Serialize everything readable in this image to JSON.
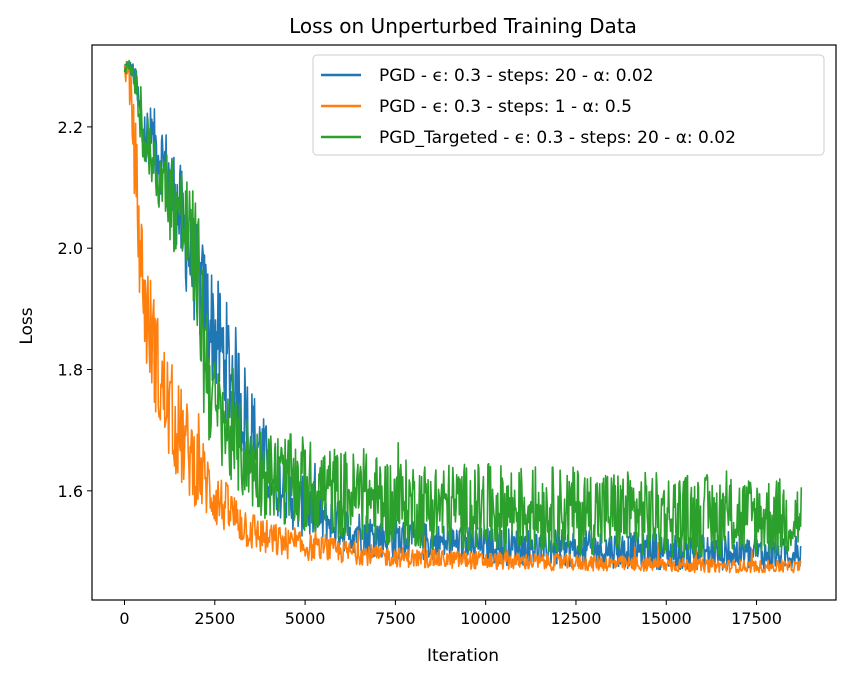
{
  "chart_data": {
    "type": "line",
    "title": "Loss on Unperturbed Training Data",
    "xlabel": "Iteration",
    "ylabel": "Loss",
    "xlim": [
      -900,
      19700
    ],
    "ylim": [
      1.42,
      2.335
    ],
    "xticks": [
      0,
      2500,
      5000,
      7500,
      10000,
      12500,
      15000,
      17500
    ],
    "yticks": [
      1.6,
      1.8,
      2.0,
      2.2
    ],
    "yticks_labels": [
      "1.6",
      "1.8",
      "2.0",
      "2.2"
    ],
    "grid": false,
    "legend_position": "top-right",
    "series": [
      {
        "name": "PGD - ϵ: 0.3 - steps: 20 - α: 0.02",
        "color": "#1f77b4",
        "noise": 0.045,
        "x": [
          0,
          200,
          300,
          500,
          1000,
          1500,
          2000,
          2500,
          3000,
          3500,
          4000,
          4500,
          5000,
          6000,
          7000,
          8000,
          10000,
          12500,
          15000,
          17500,
          18750
        ],
        "y_low": [
          2.29,
          2.28,
          2.25,
          2.12,
          2.09,
          1.97,
          1.86,
          1.76,
          1.68,
          1.62,
          1.57,
          1.54,
          1.52,
          1.5,
          1.49,
          1.485,
          1.478,
          1.474,
          1.47,
          1.468,
          1.468
        ],
        "y_high": [
          2.31,
          2.31,
          2.3,
          2.25,
          2.22,
          2.15,
          2.04,
          1.96,
          1.89,
          1.78,
          1.7,
          1.65,
          1.62,
          1.58,
          1.56,
          1.55,
          1.54,
          1.535,
          1.53,
          1.525,
          1.52
        ]
      },
      {
        "name": "PGD - ϵ: 0.3 - steps: 1 - α: 0.5",
        "color": "#ff7f0e",
        "noise": 0.035,
        "x": [
          0,
          100,
          200,
          300,
          400,
          600,
          800,
          1000,
          1500,
          2000,
          2500,
          3000,
          3500,
          4000,
          5000,
          6000,
          7000,
          8000,
          10000,
          12500,
          15000,
          17500,
          18750
        ],
        "y_low": [
          2.28,
          2.26,
          2.18,
          2.05,
          1.92,
          1.8,
          1.75,
          1.68,
          1.61,
          1.57,
          1.54,
          1.52,
          1.5,
          1.49,
          1.485,
          1.48,
          1.476,
          1.473,
          1.47,
          1.468,
          1.466,
          1.465,
          1.465
        ],
        "y_high": [
          2.31,
          2.31,
          2.28,
          2.22,
          2.12,
          1.98,
          1.94,
          1.86,
          1.78,
          1.71,
          1.64,
          1.6,
          1.57,
          1.55,
          1.53,
          1.52,
          1.51,
          1.505,
          1.5,
          1.495,
          1.49,
          1.485,
          1.485
        ]
      },
      {
        "name": "PGD_Targeted - ϵ: 0.3 - steps: 20 - α: 0.02",
        "color": "#2ca02c",
        "noise": 0.06,
        "x": [
          0,
          200,
          300,
          500,
          1000,
          1500,
          2000,
          2200,
          2500,
          3000,
          3500,
          4000,
          5000,
          6000,
          7000,
          8000,
          10000,
          12500,
          15000,
          17500,
          18750
        ],
        "y_low": [
          2.29,
          2.28,
          2.25,
          2.13,
          2.05,
          1.97,
          1.88,
          1.7,
          1.65,
          1.6,
          1.57,
          1.55,
          1.53,
          1.52,
          1.51,
          1.505,
          1.5,
          1.495,
          1.49,
          1.49,
          1.49
        ],
        "y_high": [
          2.31,
          2.31,
          2.3,
          2.24,
          2.17,
          2.16,
          2.08,
          1.98,
          1.82,
          1.76,
          1.72,
          1.7,
          1.69,
          1.67,
          1.66,
          1.65,
          1.645,
          1.64,
          1.63,
          1.625,
          1.62
        ]
      }
    ]
  }
}
